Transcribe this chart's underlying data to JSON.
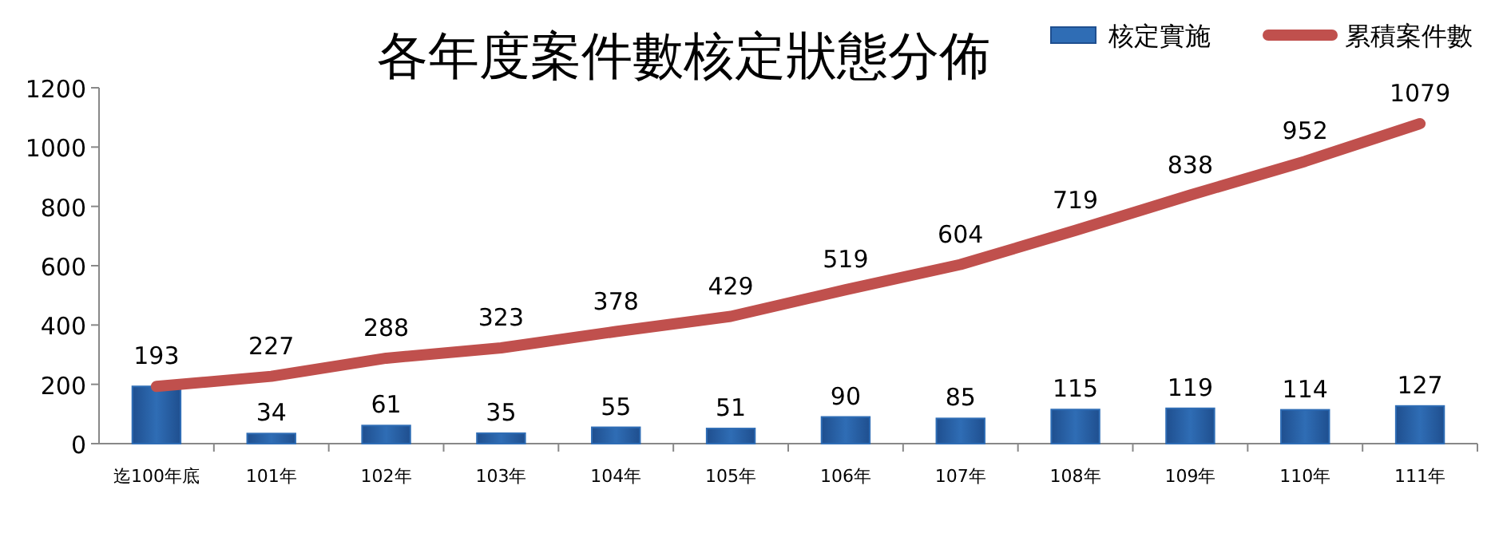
{
  "chart_data": {
    "type": "bar",
    "title": "各年度案件數核定狀態分佈",
    "categories": [
      "迄100年底",
      "101年",
      "102年",
      "103年",
      "104年",
      "105年",
      "106年",
      "107年",
      "108年",
      "109年",
      "110年",
      "111年"
    ],
    "series": [
      {
        "name": "核定實施",
        "color": "#2f6db5",
        "values": [
          193,
          34,
          61,
          35,
          55,
          51,
          90,
          85,
          115,
          119,
          114,
          127
        ],
        "value_labels": [
          null,
          "34",
          "61",
          "35",
          "55",
          "51",
          "90",
          "85",
          "115",
          "119",
          "114",
          "127"
        ]
      },
      {
        "name": "累積案件數",
        "type": "line",
        "color": "#c0504d",
        "values": [
          193,
          227,
          288,
          323,
          378,
          429,
          519,
          604,
          719,
          838,
          952,
          1079
        ],
        "value_labels": [
          "193",
          "227",
          "288",
          "323",
          "378",
          "429",
          "519",
          "604",
          "719",
          "838",
          "952",
          "1079"
        ]
      }
    ],
    "ylim": [
      0,
      1200
    ],
    "yticks": [
      0,
      200,
      400,
      600,
      800,
      1000,
      1200
    ],
    "grid": false,
    "legend": "top right"
  }
}
